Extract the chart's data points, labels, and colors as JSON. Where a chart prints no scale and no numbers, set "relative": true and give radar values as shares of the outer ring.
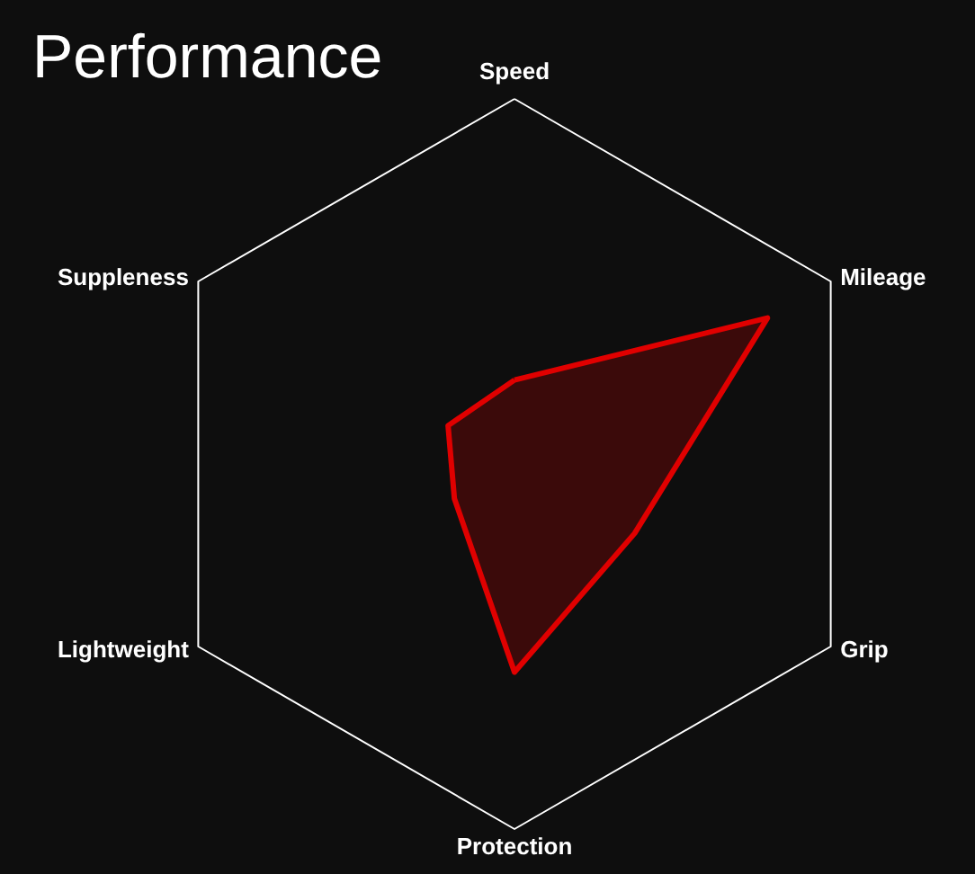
{
  "chart_data": {
    "type": "radar",
    "title": "Performance",
    "relative": true,
    "categories": [
      "Speed",
      "Mileage",
      "Grip",
      "Protection",
      "Lightweight",
      "Suppleness"
    ],
    "series": [
      {
        "color": "#e00000",
        "values": [
          0.23,
          0.8,
          0.38,
          0.57,
          0.19,
          0.21
        ]
      }
    ]
  }
}
